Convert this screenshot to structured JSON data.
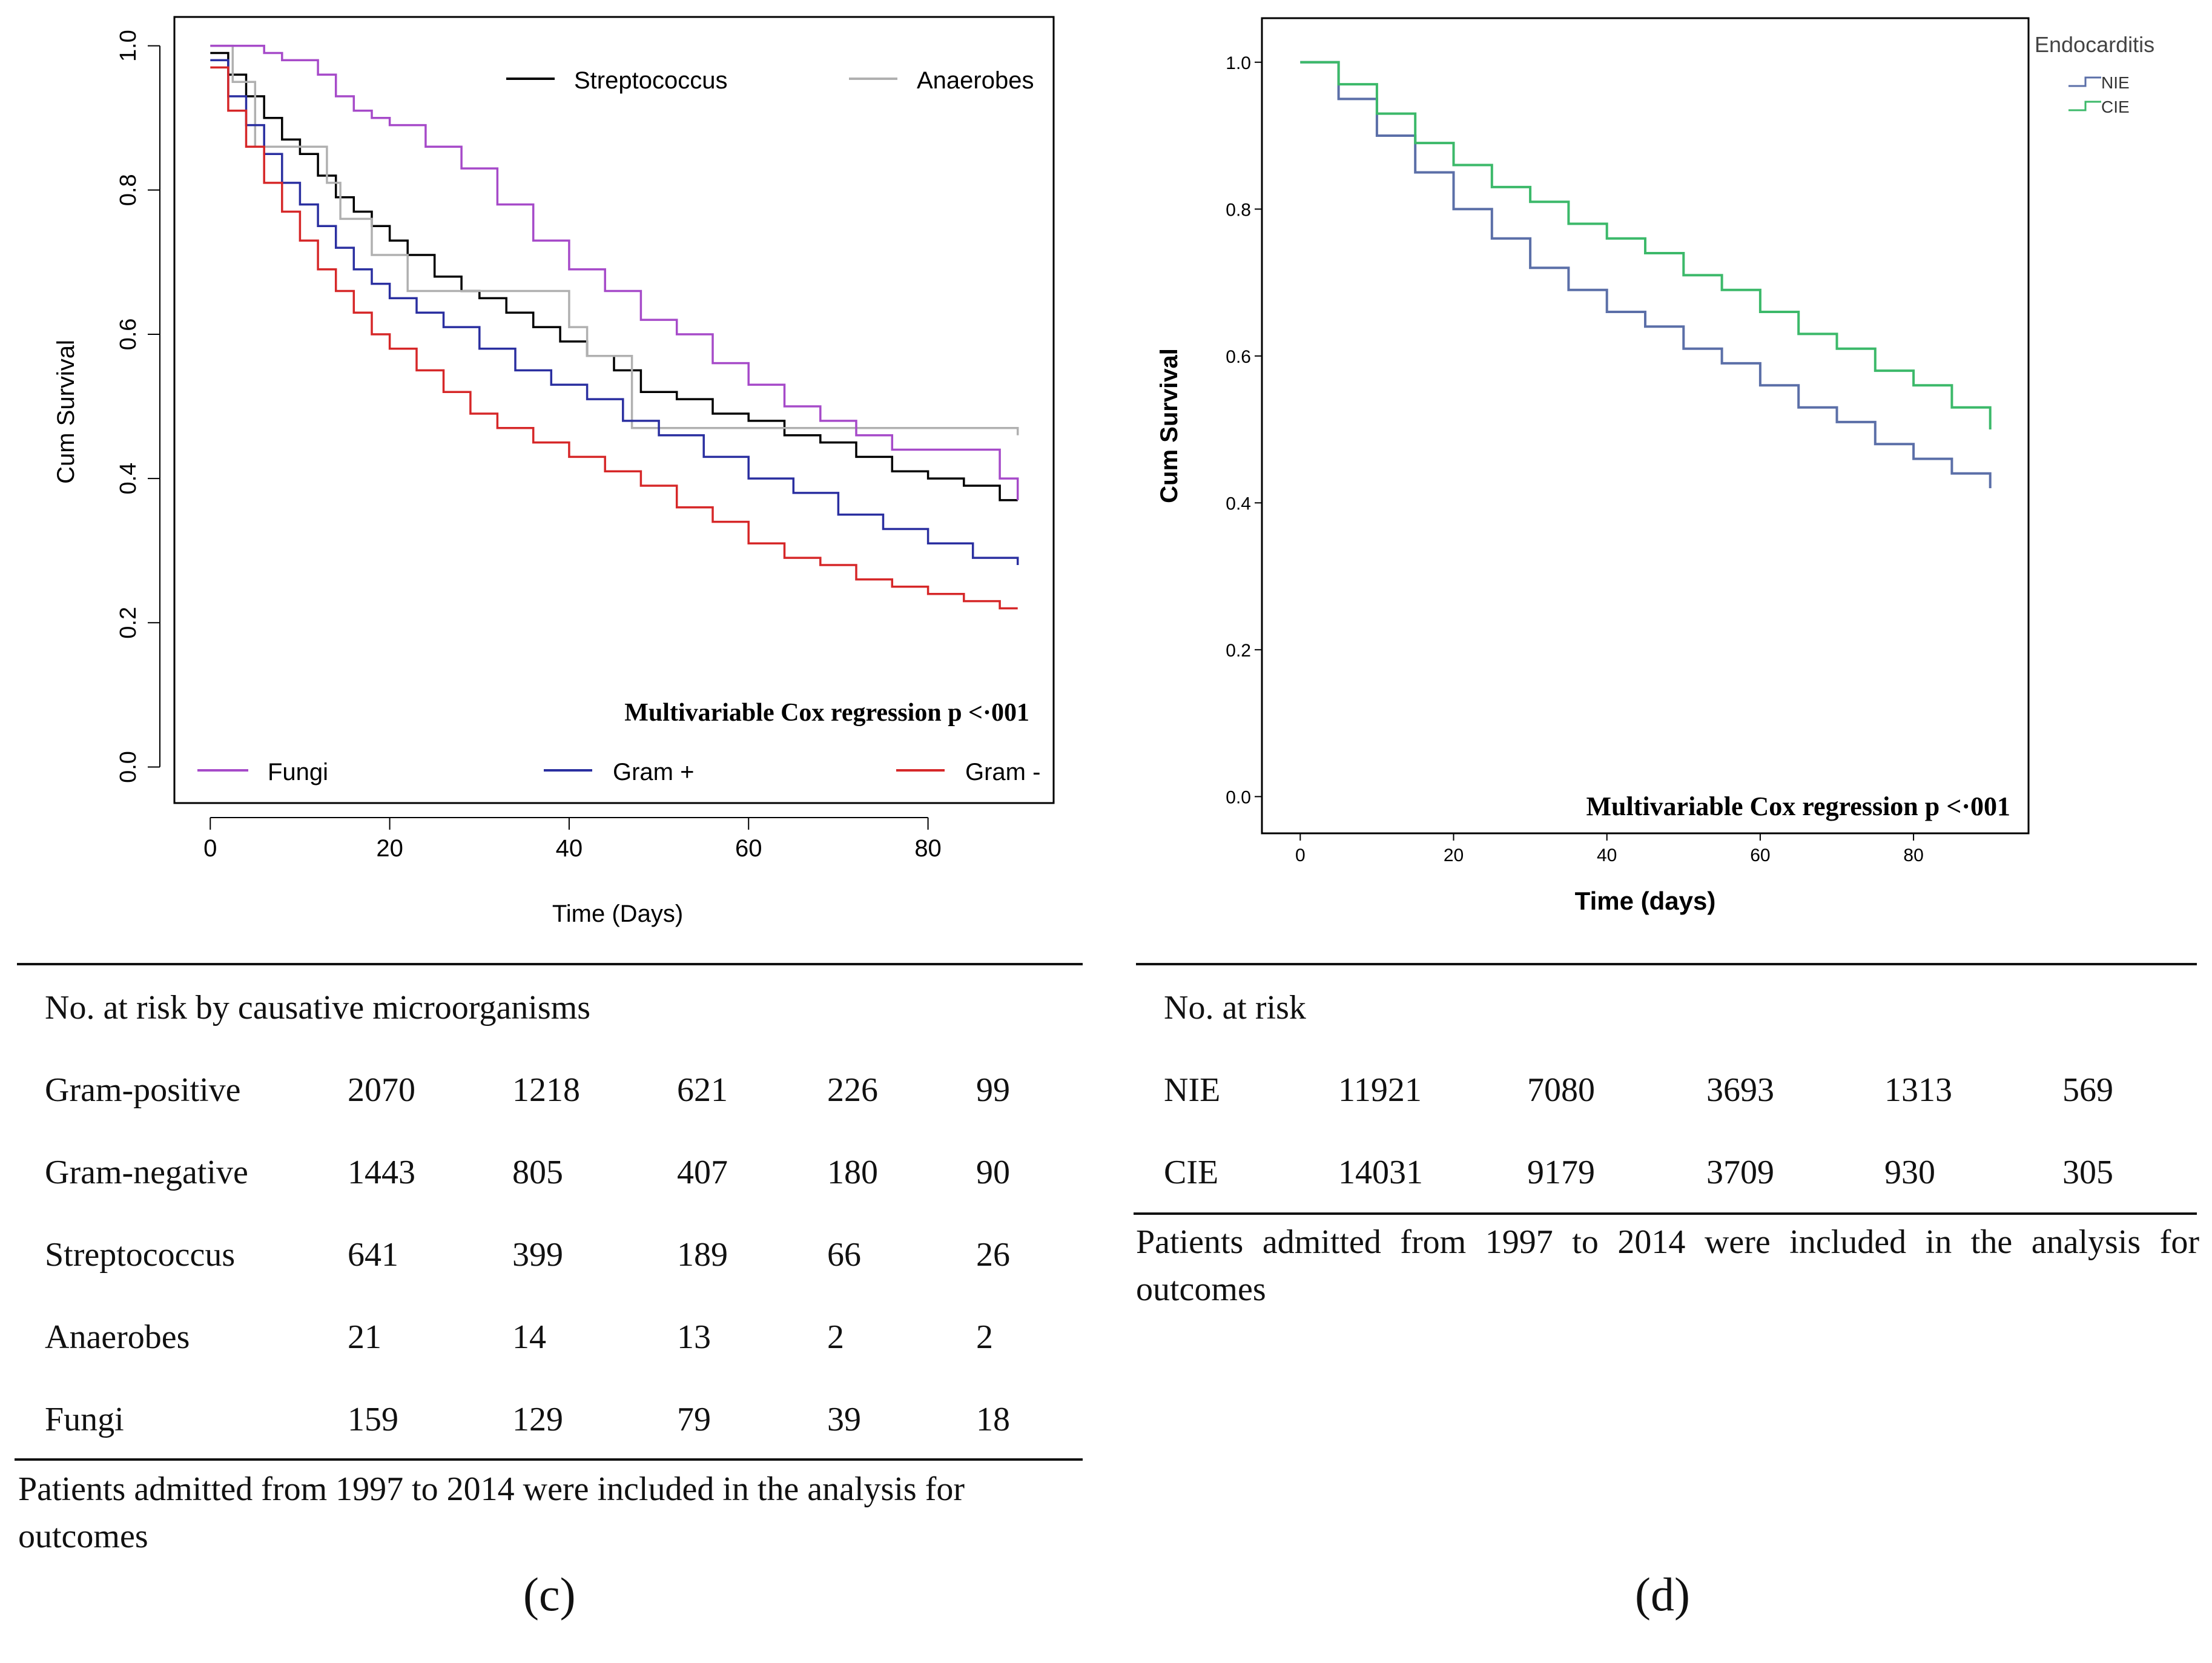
{
  "chart_data": [
    {
      "type": "line",
      "title": "",
      "panel": "c",
      "xlabel": "Time (Days)",
      "ylabel": "Cum Survival",
      "xlim": [
        -4,
        94
      ],
      "ylim": [
        -0.05,
        1.04
      ],
      "x_ticks": [
        0,
        20,
        40,
        60,
        80
      ],
      "y_ticks": [
        0.0,
        0.2,
        0.4,
        0.6,
        0.8,
        1.0
      ],
      "x_tick_labels": [
        "0",
        "20",
        "40",
        "60",
        "80"
      ],
      "y_tick_labels": [
        "0.0",
        "0.2",
        "0.4",
        "0.6",
        "0.8",
        "1.0"
      ],
      "annotation": "Multivariable Cox regression p <·001",
      "legend_top": [
        "Streptococcus",
        "Anaerobes"
      ],
      "legend_bottom": [
        "Fungi",
        "Gram +",
        "Gram -"
      ],
      "series": [
        {
          "name": "Streptococcus",
          "color": "#000000",
          "x": [
            0,
            2,
            4,
            6,
            8,
            10,
            12,
            14,
            16,
            18,
            20,
            22,
            25,
            28,
            30,
            33,
            36,
            39,
            42,
            45,
            48,
            52,
            56,
            60,
            64,
            68,
            72,
            76,
            80,
            84,
            88,
            90
          ],
          "y": [
            0.99,
            0.96,
            0.93,
            0.9,
            0.87,
            0.85,
            0.82,
            0.79,
            0.77,
            0.75,
            0.73,
            0.71,
            0.68,
            0.66,
            0.65,
            0.63,
            0.61,
            0.59,
            0.57,
            0.55,
            0.52,
            0.51,
            0.49,
            0.48,
            0.46,
            0.45,
            0.43,
            0.41,
            0.4,
            0.39,
            0.37,
            0.37
          ]
        },
        {
          "name": "Anaerobes",
          "color": "#b0b0b0",
          "x": [
            0,
            2.5,
            5,
            9,
            13,
            14.5,
            18,
            22,
            40,
            42,
            47,
            90
          ],
          "y": [
            1.0,
            0.95,
            0.86,
            0.86,
            0.81,
            0.76,
            0.71,
            0.66,
            0.61,
            0.57,
            0.47,
            0.46
          ]
        },
        {
          "name": "Fungi",
          "color": "#a64ac9",
          "x": [
            0,
            2,
            4,
            6,
            8,
            10,
            12,
            14,
            16,
            18,
            20,
            24,
            28,
            32,
            36,
            40,
            44,
            48,
            52,
            56,
            60,
            64,
            68,
            72,
            76,
            80,
            84,
            88,
            90
          ],
          "y": [
            1.0,
            1.0,
            1.0,
            0.99,
            0.98,
            0.98,
            0.96,
            0.93,
            0.91,
            0.9,
            0.89,
            0.86,
            0.83,
            0.78,
            0.73,
            0.69,
            0.66,
            0.62,
            0.6,
            0.56,
            0.53,
            0.5,
            0.48,
            0.46,
            0.44,
            0.44,
            0.44,
            0.4,
            0.37
          ]
        },
        {
          "name": "Gram +",
          "color": "#2a2fa0",
          "x": [
            0,
            2,
            4,
            6,
            8,
            10,
            12,
            14,
            16,
            18,
            20,
            23,
            26,
            30,
            34,
            38,
            42,
            46,
            50,
            55,
            60,
            65,
            70,
            75,
            80,
            85,
            90
          ],
          "y": [
            0.98,
            0.93,
            0.89,
            0.85,
            0.81,
            0.78,
            0.75,
            0.72,
            0.69,
            0.67,
            0.65,
            0.63,
            0.61,
            0.58,
            0.55,
            0.53,
            0.51,
            0.48,
            0.46,
            0.43,
            0.4,
            0.38,
            0.35,
            0.33,
            0.31,
            0.29,
            0.28
          ]
        },
        {
          "name": "Gram -",
          "color": "#d62728",
          "x": [
            0,
            2,
            4,
            6,
            8,
            10,
            12,
            14,
            16,
            18,
            20,
            23,
            26,
            29,
            32,
            36,
            40,
            44,
            48,
            52,
            56,
            60,
            64,
            68,
            72,
            76,
            80,
            84,
            88,
            90
          ],
          "y": [
            0.97,
            0.91,
            0.86,
            0.81,
            0.77,
            0.73,
            0.69,
            0.66,
            0.63,
            0.6,
            0.58,
            0.55,
            0.52,
            0.49,
            0.47,
            0.45,
            0.43,
            0.41,
            0.39,
            0.36,
            0.34,
            0.31,
            0.29,
            0.28,
            0.26,
            0.25,
            0.24,
            0.23,
            0.22,
            0.22
          ]
        }
      ]
    },
    {
      "type": "line",
      "title": "",
      "panel": "d",
      "xlabel": "Time (days)",
      "ylabel": "Cum Survival",
      "xlim": [
        -5,
        95
      ],
      "ylim": [
        -0.05,
        1.06
      ],
      "x_ticks": [
        0,
        20,
        40,
        60,
        80
      ],
      "y_ticks": [
        0.0,
        0.2,
        0.4,
        0.6,
        0.8,
        1.0
      ],
      "x_tick_labels": [
        "0",
        "20",
        "40",
        "60",
        "80"
      ],
      "y_tick_labels": [
        "0.0",
        "0.2",
        "0.4",
        "0.6",
        "0.8",
        "1.0"
      ],
      "annotation": "Multivariable Cox regression p <·001",
      "legend_title": "Endocarditis",
      "series": [
        {
          "name": "NIE",
          "color": "#5b6fa8",
          "x": [
            0,
            5,
            10,
            15,
            20,
            25,
            30,
            35,
            40,
            45,
            50,
            55,
            60,
            65,
            70,
            75,
            80,
            85,
            90
          ],
          "y": [
            1.0,
            0.95,
            0.9,
            0.85,
            0.8,
            0.76,
            0.72,
            0.69,
            0.66,
            0.64,
            0.61,
            0.59,
            0.56,
            0.53,
            0.51,
            0.48,
            0.46,
            0.44,
            0.42
          ]
        },
        {
          "name": "CIE",
          "color": "#3cb96a",
          "x": [
            0,
            5,
            10,
            15,
            20,
            25,
            30,
            35,
            40,
            45,
            50,
            55,
            60,
            65,
            70,
            75,
            80,
            85,
            90
          ],
          "y": [
            1.0,
            0.97,
            0.93,
            0.89,
            0.86,
            0.83,
            0.81,
            0.78,
            0.76,
            0.74,
            0.71,
            0.69,
            0.66,
            0.63,
            0.61,
            0.58,
            0.56,
            0.53,
            0.5
          ]
        }
      ]
    }
  ],
  "risk_c": {
    "title": "No. at risk by causative microorganisms",
    "rows": [
      {
        "label": "Gram-positive",
        "values": [
          "2070",
          "1218",
          "621",
          "226",
          "99"
        ]
      },
      {
        "label": "Gram-negative",
        "values": [
          "1443",
          "805",
          "407",
          "180",
          "90"
        ]
      },
      {
        "label": "Streptococcus",
        "values": [
          "641",
          "399",
          "189",
          "66",
          "26"
        ]
      },
      {
        "label": "Anaerobes",
        "values": [
          "21",
          "14",
          "13",
          "2",
          "2"
        ]
      },
      {
        "label": "Fungi",
        "values": [
          "159",
          "129",
          "79",
          "39",
          "18"
        ]
      }
    ],
    "note": "Patients admitted from 1997 to 2014 were included in the analysis for outcomes",
    "panel_label": "(c)"
  },
  "risk_d": {
    "title": "No. at risk",
    "rows": [
      {
        "label": "NIE",
        "values": [
          "11921",
          "7080",
          "3693",
          "1313",
          "569"
        ]
      },
      {
        "label": "CIE",
        "values": [
          "14031",
          "9179",
          "3709",
          "930",
          "305"
        ]
      }
    ],
    "note": "Patients admitted from 1997 to 2014 were included in the analysis for outcomes",
    "panel_label": "(d)"
  }
}
